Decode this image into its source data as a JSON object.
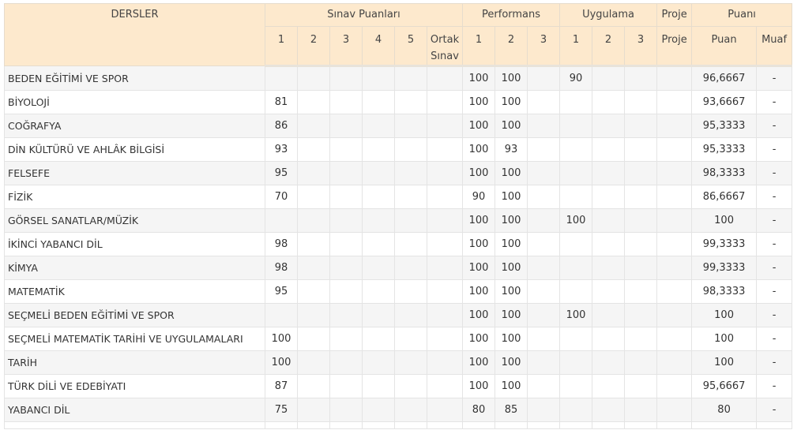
{
  "header": {
    "groups": [
      "DERSLER",
      "Sınav Puanları",
      "Performans",
      "Uygulama",
      "Proje",
      "Puanı"
    ],
    "sub": [
      "1",
      "2",
      "3",
      "4",
      "5",
      "Ortak Sınav",
      "1",
      "2",
      "3",
      "1",
      "2",
      "3",
      "Proje",
      "Puan",
      "Muaf"
    ]
  },
  "rows": [
    {
      "ders": "BEDEN EĞİTİMİ VE SPOR",
      "v": [
        "",
        "",
        "",
        "",
        "",
        "",
        "100",
        "100",
        "",
        "90",
        "",
        "",
        "",
        "96,6667",
        "-"
      ]
    },
    {
      "ders": "BİYOLOJİ",
      "v": [
        "81",
        "",
        "",
        "",
        "",
        "",
        "100",
        "100",
        "",
        "",
        "",
        "",
        "",
        "93,6667",
        "-"
      ]
    },
    {
      "ders": "COĞRAFYA",
      "v": [
        "86",
        "",
        "",
        "",
        "",
        "",
        "100",
        "100",
        "",
        "",
        "",
        "",
        "",
        "95,3333",
        "-"
      ]
    },
    {
      "ders": "DİN KÜLTÜRÜ VE AHLÂK BİLGİSİ",
      "v": [
        "93",
        "",
        "",
        "",
        "",
        "",
        "100",
        "93",
        "",
        "",
        "",
        "",
        "",
        "95,3333",
        "-"
      ]
    },
    {
      "ders": "FELSEFE",
      "v": [
        "95",
        "",
        "",
        "",
        "",
        "",
        "100",
        "100",
        "",
        "",
        "",
        "",
        "",
        "98,3333",
        "-"
      ]
    },
    {
      "ders": "FİZİK",
      "v": [
        "70",
        "",
        "",
        "",
        "",
        "",
        "90",
        "100",
        "",
        "",
        "",
        "",
        "",
        "86,6667",
        "-"
      ]
    },
    {
      "ders": "GÖRSEL SANATLAR/MÜZİK",
      "v": [
        "",
        "",
        "",
        "",
        "",
        "",
        "100",
        "100",
        "",
        "100",
        "",
        "",
        "",
        "100",
        "-"
      ]
    },
    {
      "ders": "İKİNCİ YABANCI DİL",
      "v": [
        "98",
        "",
        "",
        "",
        "",
        "",
        "100",
        "100",
        "",
        "",
        "",
        "",
        "",
        "99,3333",
        "-"
      ]
    },
    {
      "ders": "KİMYA",
      "v": [
        "98",
        "",
        "",
        "",
        "",
        "",
        "100",
        "100",
        "",
        "",
        "",
        "",
        "",
        "99,3333",
        "-"
      ]
    },
    {
      "ders": "MATEMATİK",
      "v": [
        "95",
        "",
        "",
        "",
        "",
        "",
        "100",
        "100",
        "",
        "",
        "",
        "",
        "",
        "98,3333",
        "-"
      ]
    },
    {
      "ders": "SEÇMELİ BEDEN EĞİTİMİ VE SPOR",
      "v": [
        "",
        "",
        "",
        "",
        "",
        "",
        "100",
        "100",
        "",
        "100",
        "",
        "",
        "",
        "100",
        "-"
      ]
    },
    {
      "ders": "SEÇMELİ MATEMATİK TARİHİ VE UYGULAMALARI",
      "v": [
        "100",
        "",
        "",
        "",
        "",
        "",
        "100",
        "100",
        "",
        "",
        "",
        "",
        "",
        "100",
        "-"
      ]
    },
    {
      "ders": "TARİH",
      "v": [
        "100",
        "",
        "",
        "",
        "",
        "",
        "100",
        "100",
        "",
        "",
        "",
        "",
        "",
        "100",
        "-"
      ]
    },
    {
      "ders": "TÜRK DİLİ VE EDEBİYATI",
      "v": [
        "87",
        "",
        "",
        "",
        "",
        "",
        "100",
        "100",
        "",
        "",
        "",
        "",
        "",
        "95,6667",
        "-"
      ]
    },
    {
      "ders": "YABANCI DİL",
      "v": [
        "75",
        "",
        "",
        "",
        "",
        "",
        "80",
        "85",
        "",
        "",
        "",
        "",
        "",
        "80",
        "-"
      ]
    }
  ]
}
